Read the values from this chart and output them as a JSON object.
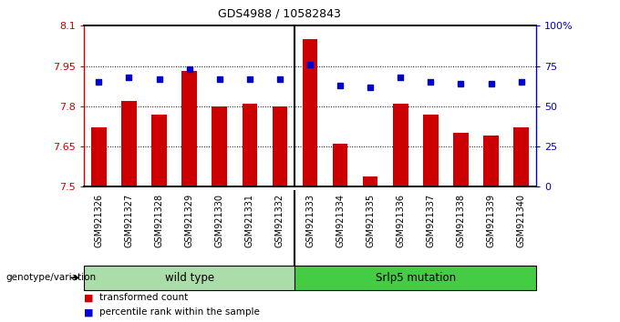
{
  "title": "GDS4988 / 10582843",
  "samples": [
    "GSM921326",
    "GSM921327",
    "GSM921328",
    "GSM921329",
    "GSM921330",
    "GSM921331",
    "GSM921332",
    "GSM921333",
    "GSM921334",
    "GSM921335",
    "GSM921336",
    "GSM921337",
    "GSM921338",
    "GSM921339",
    "GSM921340"
  ],
  "transformed_counts": [
    7.72,
    7.82,
    7.77,
    7.93,
    7.8,
    7.81,
    7.8,
    8.05,
    7.66,
    7.54,
    7.81,
    7.77,
    7.7,
    7.69,
    7.72
  ],
  "percentile_ranks": [
    65,
    68,
    67,
    73,
    67,
    67,
    67,
    76,
    63,
    62,
    68,
    65,
    64,
    64,
    65
  ],
  "ylim_left": [
    7.5,
    8.1
  ],
  "ylim_right": [
    0,
    100
  ],
  "yticks_left": [
    7.5,
    7.65,
    7.8,
    7.95,
    8.1
  ],
  "ytick_labels_left": [
    "7.5",
    "7.65",
    "7.8",
    "7.95",
    "8.1"
  ],
  "yticks_right": [
    0,
    25,
    50,
    75,
    100
  ],
  "ytick_labels_right": [
    "0",
    "25",
    "50",
    "75",
    "100%"
  ],
  "bar_color": "#CC0000",
  "dot_color": "#0000CC",
  "wild_type_label": "wild type",
  "mutation_label": "Srlp5 mutation",
  "genotype_label": "genotype/variation",
  "legend_bar": "transformed count",
  "legend_dot": "percentile rank within the sample",
  "wild_type_count": 7,
  "group_box_color_wt": "#AADDAA",
  "group_box_color_mut": "#44CC44",
  "xtick_bg_color": "#C8C8C8",
  "bg_color": "#FFFFFF",
  "bar_width": 0.5
}
